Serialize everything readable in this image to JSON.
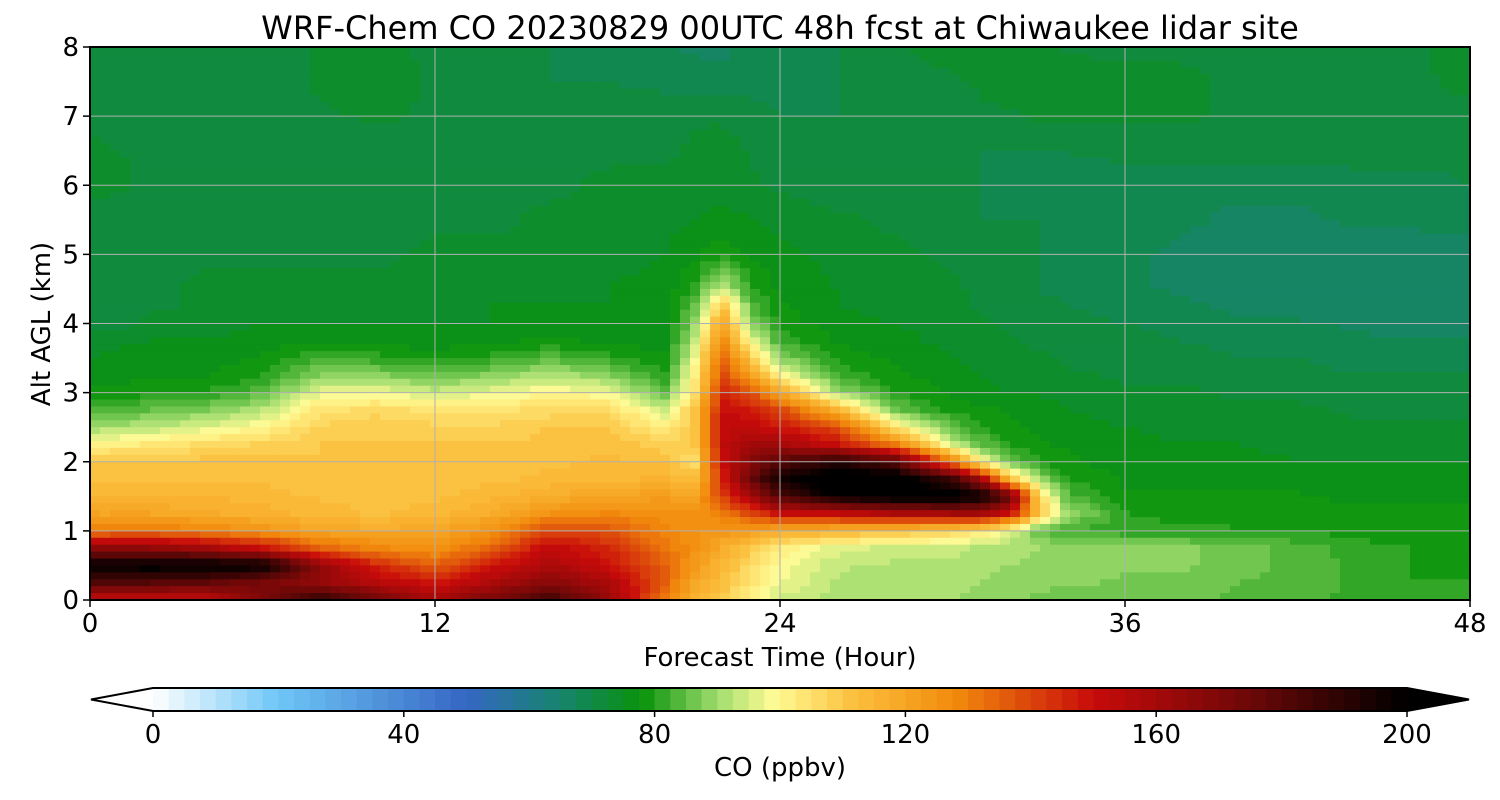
{
  "chart_data": {
    "type": "heatmap",
    "title": "WRF-Chem CO  20230829 00UTC 48h fcst at Chiwaukee lidar site",
    "xlabel": "Forecast Time (Hour)",
    "ylabel": "Alt AGL (km)",
    "xlim": [
      0,
      48
    ],
    "ylim": [
      0,
      8
    ],
    "xticks": [
      "0",
      "12",
      "24",
      "36",
      "48"
    ],
    "yticks": [
      "0",
      "1",
      "2",
      "3",
      "4",
      "5",
      "6",
      "7",
      "8"
    ],
    "grid": true,
    "x": [
      0,
      2,
      4,
      6,
      8,
      10,
      12,
      14,
      16,
      18,
      20,
      21,
      22,
      23,
      24,
      26,
      28,
      30,
      31,
      32,
      33,
      34,
      36,
      38,
      40,
      42,
      44,
      46,
      48
    ],
    "y": [
      0,
      0.25,
      0.5,
      0.75,
      1.0,
      1.25,
      1.5,
      1.75,
      2.0,
      2.25,
      2.5,
      2.75,
      3.0,
      3.25,
      3.5,
      3.75,
      4.0,
      4.25,
      4.5,
      5.0,
      5.5,
      6.0,
      6.5,
      7.0,
      7.5,
      8.0
    ],
    "z": [
      [
        150,
        150,
        150,
        170,
        190,
        175,
        160,
        172,
        185,
        165,
        130,
        115,
        110,
        100,
        94,
        91,
        90,
        90,
        89,
        88,
        87,
        86,
        85,
        86,
        84,
        83,
        82,
        80,
        80
      ],
      [
        180,
        180,
        178,
        172,
        165,
        155,
        148,
        158,
        168,
        158,
        135,
        120,
        112,
        104,
        98,
        92,
        91,
        91,
        90,
        89,
        88,
        88,
        87,
        87,
        85,
        84,
        82,
        80,
        80
      ],
      [
        200,
        202,
        202,
        200,
        165,
        145,
        135,
        148,
        158,
        150,
        135,
        124,
        114,
        106,
        99,
        93,
        92,
        92,
        91,
        90,
        89,
        89,
        88,
        88,
        86,
        84,
        82,
        80,
        79
      ],
      [
        165,
        165,
        160,
        150,
        135,
        128,
        125,
        135,
        152,
        145,
        132,
        126,
        118,
        110,
        102,
        96,
        94,
        93,
        92,
        92,
        90,
        89,
        88,
        88,
        86,
        84,
        81,
        80,
        79
      ],
      [
        130,
        132,
        128,
        125,
        120,
        118,
        120,
        125,
        140,
        138,
        128,
        125,
        124,
        122,
        118,
        115,
        112,
        108,
        104,
        95,
        85,
        82,
        81,
        81,
        80,
        80,
        79,
        79,
        78
      ],
      [
        120,
        120,
        118,
        116,
        114,
        112,
        114,
        118,
        125,
        128,
        126,
        125,
        130,
        140,
        150,
        152,
        158,
        160,
        160,
        150,
        112,
        90,
        80,
        79,
        79,
        78,
        78,
        78,
        78
      ],
      [
        114,
        115,
        115,
        114,
        112,
        111,
        112,
        114,
        118,
        120,
        122,
        120,
        140,
        160,
        182,
        200,
        205,
        205,
        200,
        178,
        108,
        84,
        78,
        78,
        78,
        78,
        77,
        77,
        77
      ],
      [
        112,
        112,
        112,
        112,
        110,
        110,
        111,
        112,
        113,
        114,
        116,
        112,
        145,
        175,
        196,
        210,
        205,
        185,
        160,
        112,
        90,
        80,
        77,
        77,
        77,
        76,
        76,
        76,
        76
      ],
      [
        111,
        111,
        111,
        111,
        110,
        110,
        111,
        111,
        112,
        113,
        112,
        104,
        150,
        168,
        180,
        190,
        180,
        130,
        100,
        85,
        80,
        78,
        76,
        76,
        76,
        75,
        75,
        75,
        75
      ],
      [
        100,
        103,
        106,
        108,
        110,
        110,
        110,
        110,
        111,
        112,
        108,
        110,
        152,
        160,
        160,
        150,
        130,
        95,
        85,
        80,
        78,
        77,
        76,
        75,
        75,
        74,
        74,
        74,
        74
      ],
      [
        90,
        92,
        96,
        100,
        108,
        110,
        108,
        108,
        110,
        110,
        102,
        110,
        152,
        152,
        148,
        138,
        104,
        84,
        80,
        78,
        77,
        76,
        75,
        74,
        74,
        73,
        73,
        73,
        73
      ],
      [
        84,
        85,
        87,
        92,
        104,
        106,
        104,
        104,
        106,
        106,
        94,
        110,
        150,
        148,
        140,
        115,
        86,
        79,
        78,
        77,
        76,
        75,
        74,
        74,
        73,
        73,
        72,
        72,
        72
      ],
      [
        78,
        79,
        80,
        84,
        97,
        98,
        94,
        97,
        100,
        98,
        84,
        104,
        145,
        138,
        120,
        90,
        80,
        77,
        76,
        75,
        75,
        74,
        73,
        73,
        72,
        72,
        71,
        71,
        71
      ],
      [
        76,
        77,
        77,
        80,
        88,
        88,
        85,
        88,
        92,
        88,
        80,
        100,
        140,
        122,
        100,
        82,
        78,
        76,
        75,
        74,
        74,
        73,
        72,
        72,
        71,
        71,
        70,
        70,
        70
      ],
      [
        75,
        76,
        76,
        78,
        82,
        81,
        79,
        81,
        84,
        81,
        78,
        96,
        135,
        110,
        88,
        79,
        77,
        75,
        74,
        73,
        73,
        72,
        71,
        71,
        70,
        70,
        69,
        69,
        69
      ],
      [
        74,
        75,
        75,
        76,
        77,
        76,
        76,
        77,
        78,
        77,
        76,
        92,
        128,
        98,
        82,
        77,
        76,
        74,
        73,
        73,
        72,
        71,
        71,
        70,
        69,
        69,
        68,
        68,
        68
      ],
      [
        70,
        73,
        74,
        75,
        75,
        75,
        75,
        75,
        76,
        76,
        76,
        88,
        120,
        88,
        79,
        76,
        75,
        74,
        73,
        72,
        71,
        71,
        70,
        69,
        68,
        68,
        67,
        66,
        66
      ],
      [
        70,
        72,
        73,
        74,
        74,
        74,
        74,
        75,
        75,
        75,
        76,
        84,
        112,
        84,
        78,
        75,
        74,
        73,
        72,
        71,
        71,
        70,
        69,
        68,
        67,
        66,
        66,
        65,
        65
      ],
      [
        71,
        72,
        73,
        73,
        73,
        73,
        74,
        74,
        74,
        75,
        76,
        80,
        95,
        80,
        77,
        75,
        74,
        73,
        72,
        71,
        70,
        69,
        68,
        67,
        66,
        66,
        65,
        65,
        65
      ],
      [
        72,
        72,
        72,
        72,
        72,
        72,
        73,
        73,
        73,
        74,
        75,
        77,
        79,
        77,
        76,
        74,
        73,
        72,
        71,
        70,
        70,
        69,
        68,
        67,
        66,
        66,
        66,
        66,
        66
      ],
      [
        71,
        71,
        71,
        71,
        71,
        72,
        72,
        72,
        73,
        73,
        74,
        75,
        76,
        75,
        74,
        73,
        72,
        71,
        70,
        70,
        70,
        69,
        68,
        68,
        67,
        67,
        68,
        68,
        69
      ],
      [
        74,
        72,
        71,
        71,
        71,
        71,
        71,
        72,
        72,
        73,
        73,
        74,
        74,
        73,
        72,
        71,
        71,
        70,
        70,
        69,
        69,
        69,
        68,
        68,
        68,
        68,
        69,
        69,
        70
      ],
      [
        73,
        72,
        71,
        71,
        71,
        71,
        71,
        71,
        72,
        72,
        72,
        73,
        74,
        72,
        71,
        70,
        70,
        70,
        70,
        70,
        70,
        70,
        71,
        71,
        71,
        71,
        71,
        71,
        71
      ],
      [
        72,
        71,
        71,
        71,
        72,
        73,
        72,
        71,
        72,
        72,
        72,
        72,
        72,
        71,
        70,
        70,
        70,
        71,
        72,
        72,
        73,
        73,
        73,
        73,
        72,
        72,
        72,
        72,
        72
      ],
      [
        71,
        71,
        71,
        71,
        73,
        74,
        72,
        71,
        70,
        70,
        69,
        69,
        68,
        69,
        69,
        70,
        71,
        72,
        73,
        74,
        74,
        74,
        73,
        73,
        72,
        72,
        72,
        72,
        73
      ],
      [
        71,
        71,
        71,
        71,
        73,
        73,
        72,
        71,
        70,
        69,
        68,
        67,
        67,
        68,
        68,
        70,
        72,
        74,
        74,
        74,
        73,
        72,
        72,
        72,
        72,
        72,
        72,
        72,
        74
      ]
    ],
    "colorbar": {
      "label": "CO  (ppbv)",
      "min": 0,
      "max": 200,
      "step": 2.5,
      "ticks": [
        "0",
        "40",
        "80",
        "120",
        "160",
        "200"
      ],
      "extend": "both",
      "stops": [
        {
          "value": 0,
          "color": "#ffffff"
        },
        {
          "value": 20,
          "color": "#6ec6f6"
        },
        {
          "value": 50,
          "color": "#3566c3"
        },
        {
          "value": 65,
          "color": "#16846e"
        },
        {
          "value": 78,
          "color": "#09920b"
        },
        {
          "value": 90,
          "color": "#a0dd6e"
        },
        {
          "value": 99,
          "color": "#fffb95"
        },
        {
          "value": 112,
          "color": "#fbbf3c"
        },
        {
          "value": 128,
          "color": "#f28a0c"
        },
        {
          "value": 150,
          "color": "#c80a0a"
        },
        {
          "value": 175,
          "color": "#6c0808"
        },
        {
          "value": 200,
          "color": "#000000"
        }
      ]
    }
  }
}
